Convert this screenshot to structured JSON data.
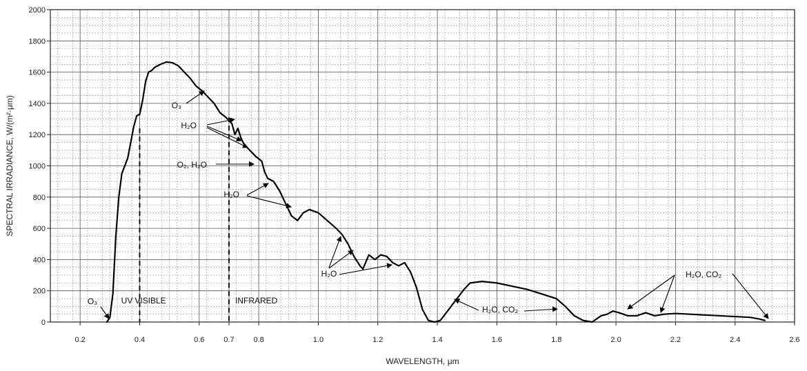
{
  "chart_data": {
    "type": "line",
    "xlabel": "WAVELENGTH, μm",
    "ylabel": "SPECTRAL IRRADIANCE, W/(m²·μm)",
    "xlim": [
      0.1,
      2.6
    ],
    "ylim": [
      0,
      2000
    ],
    "grid": true,
    "x_ticks": [
      "0.2",
      "0.4",
      "0.6",
      "0.7",
      "0.8",
      "1.0",
      "1.2",
      "1.4",
      "1.6",
      "1.8",
      "2.0",
      "2.2",
      "2.4",
      "2.6"
    ],
    "y_ticks": [
      "0",
      "200",
      "400",
      "600",
      "800",
      "1000",
      "1200",
      "1400",
      "1600",
      "1800",
      "2000"
    ],
    "series": [
      {
        "x": [
          0.29,
          0.3,
          0.31,
          0.32,
          0.33,
          0.34,
          0.35,
          0.36,
          0.37,
          0.38,
          0.39,
          0.4,
          0.41,
          0.42,
          0.43,
          0.44,
          0.45,
          0.47,
          0.49,
          0.51,
          0.53,
          0.55,
          0.57,
          0.59,
          0.61,
          0.63,
          0.65,
          0.67,
          0.69,
          0.71,
          0.72,
          0.73,
          0.74,
          0.75,
          0.76,
          0.77,
          0.79,
          0.81,
          0.82,
          0.83,
          0.85,
          0.87,
          0.89,
          0.91,
          0.93,
          0.95,
          0.97,
          1.0,
          1.03,
          1.06,
          1.08,
          1.1,
          1.12,
          1.14,
          1.15,
          1.17,
          1.19,
          1.21,
          1.23,
          1.25,
          1.27,
          1.29,
          1.31,
          1.33,
          1.35,
          1.37,
          1.39,
          1.41,
          1.43,
          1.45,
          1.47,
          1.49,
          1.51,
          1.55,
          1.6,
          1.65,
          1.7,
          1.75,
          1.8,
          1.83,
          1.86,
          1.89,
          1.92,
          1.95,
          1.97,
          1.99,
          2.01,
          2.04,
          2.07,
          2.1,
          2.13,
          2.16,
          2.2,
          2.25,
          2.3,
          2.35,
          2.4,
          2.45,
          2.48,
          2.5
        ],
        "values": [
          0,
          30,
          180,
          550,
          800,
          950,
          1000,
          1050,
          1150,
          1250,
          1320,
          1330,
          1420,
          1540,
          1600,
          1610,
          1630,
          1650,
          1665,
          1660,
          1640,
          1600,
          1560,
          1510,
          1480,
          1440,
          1400,
          1340,
          1310,
          1270,
          1200,
          1240,
          1180,
          1140,
          1120,
          1100,
          1060,
          1030,
          960,
          920,
          900,
          840,
          760,
          680,
          650,
          700,
          720,
          700,
          650,
          600,
          560,
          500,
          420,
          360,
          340,
          430,
          400,
          430,
          420,
          380,
          360,
          380,
          320,
          220,
          80,
          10,
          0,
          10,
          60,
          110,
          160,
          210,
          250,
          260,
          250,
          230,
          210,
          180,
          150,
          100,
          40,
          10,
          0,
          40,
          50,
          70,
          60,
          40,
          40,
          60,
          40,
          50,
          55,
          50,
          45,
          40,
          35,
          30,
          20,
          10
        ]
      }
    ],
    "annotations": [
      {
        "label": "O₃"
      },
      {
        "label": "UV"
      },
      {
        "label": "VISIBLE"
      },
      {
        "label": "INFRARED"
      },
      {
        "label": "O₃"
      },
      {
        "label": "H₂O"
      },
      {
        "label": "O₂, H₂O"
      },
      {
        "label": "H₂O"
      },
      {
        "label": "H₂O"
      },
      {
        "label": "H₂O, CO₂"
      },
      {
        "label": "H₂O, CO₂"
      }
    ],
    "region_boundaries": [
      0.4,
      0.7
    ]
  }
}
